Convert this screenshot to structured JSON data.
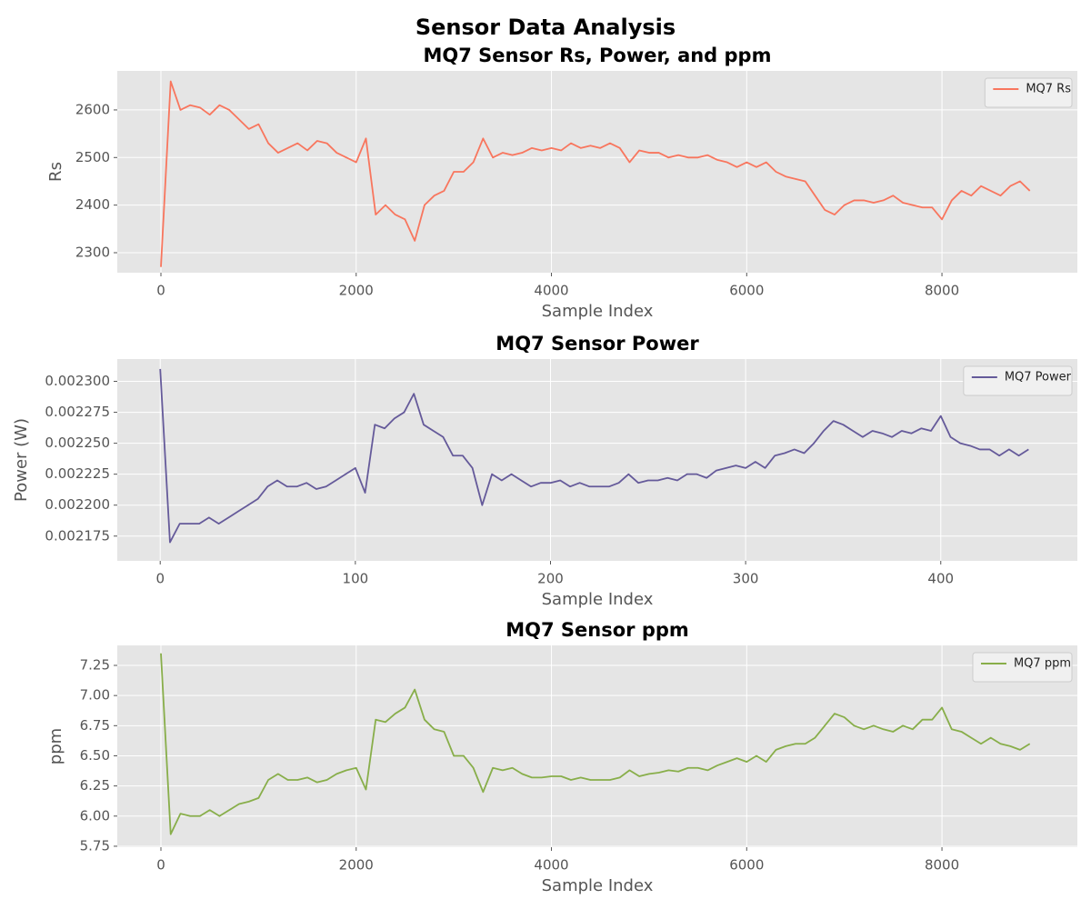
{
  "title": "Sensor Data Analysis",
  "chart_data": [
    {
      "type": "line",
      "title": "MQ7 Sensor Rs, Power, and ppm",
      "x_label": "Sample Index",
      "y_label": "Rs",
      "x": [
        0,
        100,
        200,
        300,
        400,
        500,
        600,
        700,
        800,
        900,
        1000,
        1100,
        1200,
        1300,
        1400,
        1500,
        1600,
        1700,
        1800,
        1900,
        2000,
        2100,
        2200,
        2300,
        2400,
        2500,
        2600,
        2700,
        2800,
        2900,
        3000,
        3100,
        3200,
        3300,
        3400,
        3500,
        3600,
        3700,
        3800,
        3900,
        4000,
        4100,
        4200,
        4300,
        4400,
        4500,
        4600,
        4700,
        4800,
        4900,
        5000,
        5100,
        5200,
        5300,
        5400,
        5500,
        5600,
        5700,
        5800,
        5900,
        6000,
        6100,
        6200,
        6300,
        6400,
        6500,
        6600,
        6700,
        6800,
        6900,
        7000,
        7100,
        7200,
        7300,
        7400,
        7500,
        7600,
        7700,
        7800,
        7900,
        8000,
        8100,
        8200,
        8300,
        8400,
        8500,
        8600,
        8700,
        8800,
        8900
      ],
      "series": [
        {
          "name": "MQ7 Rs",
          "color": "#f8765e",
          "values": [
            2270,
            2660,
            2600,
            2610,
            2605,
            2590,
            2610,
            2600,
            2580,
            2560,
            2570,
            2530,
            2510,
            2520,
            2530,
            2515,
            2535,
            2530,
            2510,
            2500,
            2490,
            2540,
            2380,
            2400,
            2380,
            2370,
            2325,
            2400,
            2420,
            2430,
            2470,
            2470,
            2490,
            2540,
            2500,
            2510,
            2505,
            2510,
            2520,
            2515,
            2520,
            2515,
            2530,
            2520,
            2525,
            2520,
            2530,
            2520,
            2490,
            2515,
            2510,
            2510,
            2500,
            2505,
            2500,
            2500,
            2505,
            2495,
            2490,
            2480,
            2490,
            2480,
            2490,
            2470,
            2460,
            2455,
            2450,
            2420,
            2390,
            2380,
            2400,
            2410,
            2410,
            2405,
            2410,
            2420,
            2405,
            2400,
            2395,
            2395,
            2370,
            2410,
            2430,
            2420,
            2440,
            2430,
            2420,
            2440,
            2450,
            2430
          ]
        }
      ],
      "xlim": [
        -447,
        9387
      ],
      "xticks": [
        0,
        2000,
        4000,
        6000,
        8000
      ],
      "ylim": [
        2258,
        2682
      ],
      "yticks": [
        2300,
        2400,
        2500,
        2600
      ],
      "grid": true,
      "legend": "upper right"
    },
    {
      "type": "line",
      "title": "MQ7 Sensor Power",
      "x_label": "Sample Index",
      "y_label": "Power (W)",
      "x": [
        0,
        5,
        10,
        15,
        20,
        25,
        30,
        35,
        40,
        45,
        50,
        55,
        60,
        65,
        70,
        75,
        80,
        85,
        90,
        95,
        100,
        105,
        110,
        115,
        120,
        125,
        130,
        135,
        140,
        145,
        150,
        155,
        160,
        165,
        170,
        175,
        180,
        185,
        190,
        195,
        200,
        205,
        210,
        215,
        220,
        225,
        230,
        235,
        240,
        245,
        250,
        255,
        260,
        265,
        270,
        275,
        280,
        285,
        290,
        295,
        300,
        305,
        310,
        315,
        320,
        325,
        330,
        335,
        340,
        345,
        350,
        355,
        360,
        365,
        370,
        375,
        380,
        385,
        390,
        395,
        400,
        405,
        410,
        415,
        420,
        425,
        430,
        435,
        440,
        445
      ],
      "series": [
        {
          "name": "MQ7 Power",
          "color": "#655a9a",
          "values": [
            0.00231,
            0.00217,
            0.002185,
            0.002185,
            0.002185,
            0.00219,
            0.002185,
            0.00219,
            0.002195,
            0.0022,
            0.002205,
            0.002215,
            0.00222,
            0.002215,
            0.002215,
            0.002218,
            0.002213,
            0.002215,
            0.00222,
            0.002225,
            0.00223,
            0.00221,
            0.002265,
            0.002262,
            0.00227,
            0.002275,
            0.00229,
            0.002265,
            0.00226,
            0.002255,
            0.00224,
            0.00224,
            0.00223,
            0.0022,
            0.002225,
            0.00222,
            0.002225,
            0.00222,
            0.002215,
            0.002218,
            0.002218,
            0.00222,
            0.002215,
            0.002218,
            0.002215,
            0.002215,
            0.002215,
            0.002218,
            0.002225,
            0.002218,
            0.00222,
            0.00222,
            0.002222,
            0.00222,
            0.002225,
            0.002225,
            0.002222,
            0.002228,
            0.00223,
            0.002232,
            0.00223,
            0.002235,
            0.00223,
            0.00224,
            0.002242,
            0.002245,
            0.002242,
            0.00225,
            0.00226,
            0.002268,
            0.002265,
            0.00226,
            0.002255,
            0.00226,
            0.002258,
            0.002255,
            0.00226,
            0.002258,
            0.002262,
            0.00226,
            0.002272,
            0.002255,
            0.00225,
            0.002248,
            0.002245,
            0.002245,
            0.00224,
            0.002245,
            0.00224,
            0.002245
          ]
        }
      ],
      "xlim": [
        -22,
        470
      ],
      "xticks": [
        0,
        100,
        200,
        300,
        400
      ],
      "ylim": [
        0.002155,
        0.002318
      ],
      "yticks": [
        {
          "value": 0.002175,
          "label": "0.002175"
        },
        {
          "value": 0.0022,
          "label": "0.002200"
        },
        {
          "value": 0.002225,
          "label": "0.002225"
        },
        {
          "value": 0.00225,
          "label": "0.002250"
        },
        {
          "value": 0.002275,
          "label": "0.002275"
        },
        {
          "value": 0.0023,
          "label": "0.002300"
        }
      ],
      "grid": true,
      "legend": "upper right"
    },
    {
      "type": "line",
      "title": "MQ7 Sensor ppm",
      "x_label": "Sample Index",
      "y_label": "ppm",
      "x": [
        0,
        100,
        200,
        300,
        400,
        500,
        600,
        700,
        800,
        900,
        1000,
        1100,
        1200,
        1300,
        1400,
        1500,
        1600,
        1700,
        1800,
        1900,
        2000,
        2100,
        2200,
        2300,
        2400,
        2500,
        2600,
        2700,
        2800,
        2900,
        3000,
        3100,
        3200,
        3300,
        3400,
        3500,
        3600,
        3700,
        3800,
        3900,
        4000,
        4100,
        4200,
        4300,
        4400,
        4500,
        4600,
        4700,
        4800,
        4900,
        5000,
        5100,
        5200,
        5300,
        5400,
        5500,
        5600,
        5700,
        5800,
        5900,
        6000,
        6100,
        6200,
        6300,
        6400,
        6500,
        6600,
        6700,
        6800,
        6900,
        7000,
        7100,
        7200,
        7300,
        7400,
        7500,
        7600,
        7700,
        7800,
        7900,
        8000,
        8100,
        8200,
        8300,
        8400,
        8500,
        8600,
        8700,
        8800,
        8900
      ],
      "series": [
        {
          "name": "MQ7 ppm",
          "color": "#88ae4a",
          "values": [
            7.35,
            5.85,
            6.02,
            6.0,
            6.0,
            6.05,
            6.0,
            6.05,
            6.1,
            6.12,
            6.15,
            6.3,
            6.35,
            6.3,
            6.3,
            6.32,
            6.28,
            6.3,
            6.35,
            6.38,
            6.4,
            6.22,
            6.8,
            6.78,
            6.85,
            6.9,
            7.05,
            6.8,
            6.72,
            6.7,
            6.5,
            6.5,
            6.4,
            6.2,
            6.4,
            6.38,
            6.4,
            6.35,
            6.32,
            6.32,
            6.33,
            6.33,
            6.3,
            6.32,
            6.3,
            6.3,
            6.3,
            6.32,
            6.38,
            6.33,
            6.35,
            6.36,
            6.38,
            6.37,
            6.4,
            6.4,
            6.38,
            6.42,
            6.45,
            6.48,
            6.45,
            6.5,
            6.45,
            6.55,
            6.58,
            6.6,
            6.6,
            6.65,
            6.75,
            6.85,
            6.82,
            6.75,
            6.72,
            6.75,
            6.72,
            6.7,
            6.75,
            6.72,
            6.8,
            6.8,
            6.9,
            6.72,
            6.7,
            6.65,
            6.6,
            6.65,
            6.6,
            6.58,
            6.55,
            6.6
          ]
        }
      ],
      "xlim": [
        -447,
        9387
      ],
      "xticks": [
        0,
        2000,
        4000,
        6000,
        8000
      ],
      "ylim": [
        5.742,
        7.416
      ],
      "yticks": [
        5.75,
        {
          "value": 6.0,
          "label": "6.00"
        },
        6.25,
        {
          "value": 6.5,
          "label": "6.50"
        },
        6.75,
        {
          "value": 7.0,
          "label": "7.00"
        },
        7.25
      ],
      "grid": true,
      "legend": "upper right"
    }
  ]
}
